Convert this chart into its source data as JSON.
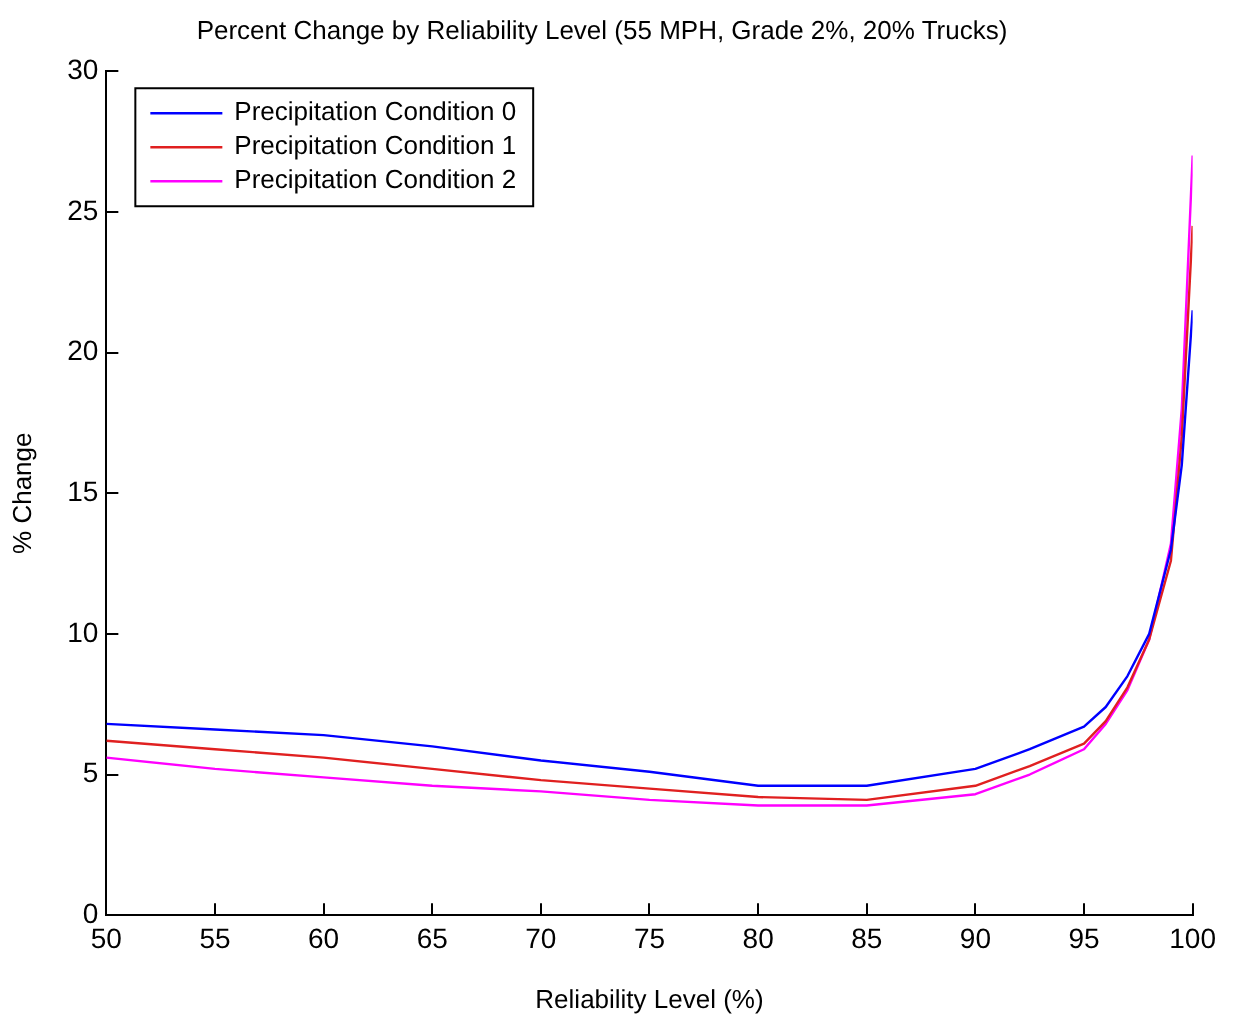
{
  "chart_data": {
    "type": "line",
    "title": "Percent Change by Reliability Level (55 MPH, Grade 2%, 20% Trucks)",
    "xlabel": "Reliability Level (%)",
    "ylabel": "% Change",
    "x": [
      50,
      55,
      60,
      65,
      70,
      75,
      80,
      85,
      90,
      92.5,
      95,
      96,
      97,
      98,
      99,
      99.5,
      100
    ],
    "series": [
      {
        "name": "Precipitation Condition 0",
        "color": "#0000ff",
        "values": [
          6.8,
          6.6,
          6.4,
          6.0,
          5.5,
          5.1,
          4.6,
          4.6,
          5.2,
          5.9,
          6.7,
          7.4,
          8.5,
          10,
          13,
          16,
          21.5
        ]
      },
      {
        "name": "Precipitation Condition 1",
        "color": "#e02020",
        "values": [
          6.2,
          5.9,
          5.6,
          5.2,
          4.8,
          4.5,
          4.2,
          4.1,
          4.6,
          5.3,
          6.1,
          6.9,
          8.1,
          9.8,
          12.6,
          17,
          24.5
        ]
      },
      {
        "name": "Precipitation Condition 2",
        "color": "#ff00ff",
        "values": [
          5.6,
          5.2,
          4.9,
          4.6,
          4.4,
          4.1,
          3.9,
          3.9,
          4.3,
          5.0,
          5.9,
          6.8,
          8.0,
          9.8,
          13.2,
          18,
          27
        ]
      }
    ],
    "xlim": [
      50,
      100
    ],
    "xticks": [
      50,
      55,
      60,
      65,
      70,
      75,
      80,
      85,
      90,
      95,
      100
    ],
    "ylim": [
      0,
      30
    ],
    "yticks": [
      0,
      5,
      10,
      15,
      20,
      25,
      30
    ],
    "grid": false,
    "legend": "top left",
    "marker": "none",
    "line_style": "solid"
  }
}
